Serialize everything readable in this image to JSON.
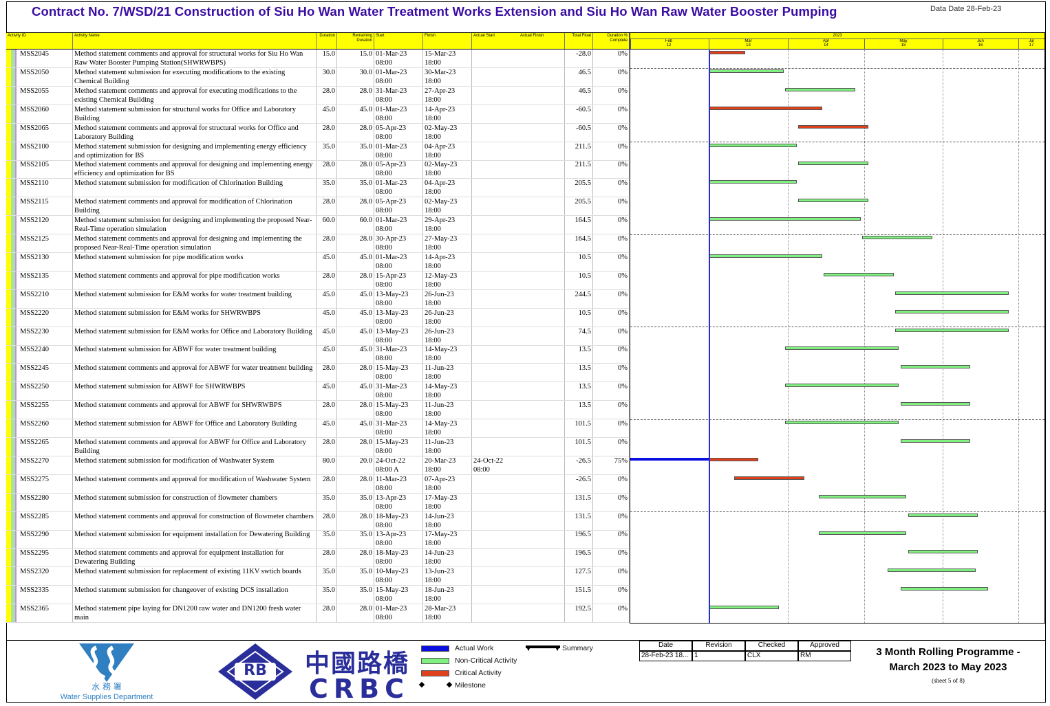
{
  "header": {
    "title": "Contract No. 7/WSD/21 Construction of Siu Ho Wan Water Treatment Works Extension and Siu Ho Wan Raw Water Booster Pumping",
    "data_date": "Data Date 28-Feb-23"
  },
  "columns": {
    "activity_id": "Activity ID",
    "activity_name": "Activity Name",
    "duration": "Duration",
    "remaining_duration": "Remaining Duration",
    "start": "Start",
    "finish": "Finish",
    "actual_start": "Actual Start",
    "actual_finish": "Actual Finish",
    "total_float": "Total Float",
    "duration_pct": "Duration % Complete"
  },
  "timescale": {
    "year": "2023",
    "months": [
      "Feb",
      "Mar",
      "Apr",
      "May",
      "Jun",
      "Jul"
    ],
    "month_codes": [
      "12",
      "13",
      "14",
      "15",
      "16",
      "17"
    ]
  },
  "rows": [
    {
      "id": "MSS2045",
      "name": "Method statement comments and approval for structural works for Siu Ho Wan Raw Water Booster Pumping Station(SHWRWBPS)",
      "dur": "15.0",
      "rem": "15.0",
      "start": "01-Mar-23",
      "start_t": "08:00",
      "finish": "15-Mar-23",
      "finish_t": "18:00",
      "astart": "",
      "astart_t": "",
      "tf": "-28.0",
      "pct": "0%",
      "type": "cr",
      "s": "2023-03-01",
      "f": "2023-03-15"
    },
    {
      "id": "MSS2050",
      "name": "Method statement submission for executing modifications to the existing Chemical Building",
      "dur": "30.0",
      "rem": "30.0",
      "start": "01-Mar-23",
      "start_t": "08:00",
      "finish": "30-Mar-23",
      "finish_t": "18:00",
      "astart": "",
      "astart_t": "",
      "tf": "46.5",
      "pct": "0%",
      "type": "nc",
      "s": "2023-03-01",
      "f": "2023-03-30"
    },
    {
      "id": "MSS2055",
      "name": "Method statement comments and approval for executing modifications to the existing Chemical Building",
      "dur": "28.0",
      "rem": "28.0",
      "start": "31-Mar-23",
      "start_t": "08:00",
      "finish": "27-Apr-23",
      "finish_t": "18:00",
      "astart": "",
      "astart_t": "",
      "tf": "46.5",
      "pct": "0%",
      "type": "nc",
      "s": "2023-03-31",
      "f": "2023-04-27"
    },
    {
      "id": "MSS2060",
      "name": "Method statement submission for structural works for Office and Laboratory Building",
      "dur": "45.0",
      "rem": "45.0",
      "start": "01-Mar-23",
      "start_t": "08:00",
      "finish": "14-Apr-23",
      "finish_t": "18:00",
      "astart": "",
      "astart_t": "",
      "tf": "-60.5",
      "pct": "0%",
      "type": "cr",
      "s": "2023-03-01",
      "f": "2023-04-14"
    },
    {
      "id": "MSS2065",
      "name": "Method statement comments and approval for structural works for Office and Laboratory Building",
      "dur": "28.0",
      "rem": "28.0",
      "start": "05-Apr-23",
      "start_t": "08:00",
      "finish": "02-May-23",
      "finish_t": "18:00",
      "astart": "",
      "astart_t": "",
      "tf": "-60.5",
      "pct": "0%",
      "type": "cr",
      "s": "2023-04-05",
      "f": "2023-05-02"
    },
    {
      "id": "MSS2100",
      "name": "Method statement submission for designing and implementing energy efficiency and optimization for BS",
      "dur": "35.0",
      "rem": "35.0",
      "start": "01-Mar-23",
      "start_t": "08:00",
      "finish": "04-Apr-23",
      "finish_t": "18:00",
      "astart": "",
      "astart_t": "",
      "tf": "211.5",
      "pct": "0%",
      "type": "nc",
      "s": "2023-03-01",
      "f": "2023-04-04"
    },
    {
      "id": "MSS2105",
      "name": "Method statement comments and approval for designing and implementing energy efficiency and optimization for BS",
      "dur": "28.0",
      "rem": "28.0",
      "start": "05-Apr-23",
      "start_t": "08:00",
      "finish": "02-May-23",
      "finish_t": "18:00",
      "astart": "",
      "astart_t": "",
      "tf": "211.5",
      "pct": "0%",
      "type": "nc",
      "s": "2023-04-05",
      "f": "2023-05-02"
    },
    {
      "id": "MSS2110",
      "name": "Method statement submission for modification of Chlorination Building",
      "dur": "35.0",
      "rem": "35.0",
      "start": "01-Mar-23",
      "start_t": "08:00",
      "finish": "04-Apr-23",
      "finish_t": "18:00",
      "astart": "",
      "astart_t": "",
      "tf": "205.5",
      "pct": "0%",
      "type": "nc",
      "s": "2023-03-01",
      "f": "2023-04-04"
    },
    {
      "id": "MSS2115",
      "name": "Method statement  comments and approval for modification of Chlorination Building",
      "dur": "28.0",
      "rem": "28.0",
      "start": "05-Apr-23",
      "start_t": "08:00",
      "finish": "02-May-23",
      "finish_t": "18:00",
      "astart": "",
      "astart_t": "",
      "tf": "205.5",
      "pct": "0%",
      "type": "nc",
      "s": "2023-04-05",
      "f": "2023-05-02"
    },
    {
      "id": "MSS2120",
      "name": "Method statement submission for designing and implementing the proposed Near-Real-Time operation simulation",
      "dur": "60.0",
      "rem": "60.0",
      "start": "01-Mar-23",
      "start_t": "08:00",
      "finish": "29-Apr-23",
      "finish_t": "18:00",
      "astart": "",
      "astart_t": "",
      "tf": "164.5",
      "pct": "0%",
      "type": "nc",
      "s": "2023-03-01",
      "f": "2023-04-29"
    },
    {
      "id": "MSS2125",
      "name": "Method statement comments and approval for designing and implementing the proposed Near-Real-Time operation simulation",
      "dur": "28.0",
      "rem": "28.0",
      "start": "30-Apr-23",
      "start_t": "08:00",
      "finish": "27-May-23",
      "finish_t": "18:00",
      "astart": "",
      "astart_t": "",
      "tf": "164.5",
      "pct": "0%",
      "type": "nc",
      "s": "2023-04-30",
      "f": "2023-05-27"
    },
    {
      "id": "MSS2130",
      "name": "Method statement submission for pipe modification works",
      "dur": "45.0",
      "rem": "45.0",
      "start": "01-Mar-23",
      "start_t": "08:00",
      "finish": "14-Apr-23",
      "finish_t": "18:00",
      "astart": "",
      "astart_t": "",
      "tf": "10.5",
      "pct": "0%",
      "type": "nc",
      "s": "2023-03-01",
      "f": "2023-04-14"
    },
    {
      "id": "MSS2135",
      "name": "Method statement comments and approval for pipe modification works",
      "dur": "28.0",
      "rem": "28.0",
      "start": "15-Apr-23",
      "start_t": "08:00",
      "finish": "12-May-23",
      "finish_t": "18:00",
      "astart": "",
      "astart_t": "",
      "tf": "10.5",
      "pct": "0%",
      "type": "nc",
      "s": "2023-04-15",
      "f": "2023-05-12"
    },
    {
      "id": "MSS2210",
      "name": "Method statement submission for E&M works for water treatment building",
      "dur": "45.0",
      "rem": "45.0",
      "start": "13-May-23",
      "start_t": "08:00",
      "finish": "26-Jun-23",
      "finish_t": "18:00",
      "astart": "",
      "astart_t": "",
      "tf": "244.5",
      "pct": "0%",
      "type": "nc",
      "s": "2023-05-13",
      "f": "2023-06-26"
    },
    {
      "id": "MSS2220",
      "name": "Method statement submission for E&M works for SHWRWBPS",
      "dur": "45.0",
      "rem": "45.0",
      "start": "13-May-23",
      "start_t": "08:00",
      "finish": "26-Jun-23",
      "finish_t": "18:00",
      "astart": "",
      "astart_t": "",
      "tf": "10.5",
      "pct": "0%",
      "type": "nc",
      "s": "2023-05-13",
      "f": "2023-06-26"
    },
    {
      "id": "MSS2230",
      "name": "Method statement submission for E&M works for Office and Laboratory Building",
      "dur": "45.0",
      "rem": "45.0",
      "start": "13-May-23",
      "start_t": "08:00",
      "finish": "26-Jun-23",
      "finish_t": "18:00",
      "astart": "",
      "astart_t": "",
      "tf": "74.5",
      "pct": "0%",
      "type": "nc",
      "s": "2023-05-13",
      "f": "2023-06-26"
    },
    {
      "id": "MSS2240",
      "name": "Method statement submission for ABWF for water treatment building",
      "dur": "45.0",
      "rem": "45.0",
      "start": "31-Mar-23",
      "start_t": "08:00",
      "finish": "14-May-23",
      "finish_t": "18:00",
      "astart": "",
      "astart_t": "",
      "tf": "13.5",
      "pct": "0%",
      "type": "nc",
      "s": "2023-03-31",
      "f": "2023-05-14"
    },
    {
      "id": "MSS2245",
      "name": "Method statement comments and approval for ABWF for water treatment building",
      "dur": "28.0",
      "rem": "28.0",
      "start": "15-May-23",
      "start_t": "08:00",
      "finish": "11-Jun-23",
      "finish_t": "18:00",
      "astart": "",
      "astart_t": "",
      "tf": "13.5",
      "pct": "0%",
      "type": "nc",
      "s": "2023-05-15",
      "f": "2023-06-11"
    },
    {
      "id": "MSS2250",
      "name": "Method statement submission for ABWF for SHWRWBPS",
      "dur": "45.0",
      "rem": "45.0",
      "start": "31-Mar-23",
      "start_t": "08:00",
      "finish": "14-May-23",
      "finish_t": "18:00",
      "astart": "",
      "astart_t": "",
      "tf": "13.5",
      "pct": "0%",
      "type": "nc",
      "s": "2023-03-31",
      "f": "2023-05-14"
    },
    {
      "id": "MSS2255",
      "name": "Method statement comments and approval for ABWF for SHWRWBPS",
      "dur": "28.0",
      "rem": "28.0",
      "start": "15-May-23",
      "start_t": "08:00",
      "finish": "11-Jun-23",
      "finish_t": "18:00",
      "astart": "",
      "astart_t": "",
      "tf": "13.5",
      "pct": "0%",
      "type": "nc",
      "s": "2023-05-15",
      "f": "2023-06-11"
    },
    {
      "id": "MSS2260",
      "name": "Method statement submission for ABWF for Office and Laboratory Building",
      "dur": "45.0",
      "rem": "45.0",
      "start": "31-Mar-23",
      "start_t": "08:00",
      "finish": "14-May-23",
      "finish_t": "18:00",
      "astart": "",
      "astart_t": "",
      "tf": "101.5",
      "pct": "0%",
      "type": "nc",
      "s": "2023-03-31",
      "f": "2023-05-14"
    },
    {
      "id": "MSS2265",
      "name": "Method statement comments and approval for ABWF for Office and Laboratory Building",
      "dur": "28.0",
      "rem": "28.0",
      "start": "15-May-23",
      "start_t": "08:00",
      "finish": "11-Jun-23",
      "finish_t": "18:00",
      "astart": "",
      "astart_t": "",
      "tf": "101.5",
      "pct": "0%",
      "type": "nc",
      "s": "2023-05-15",
      "f": "2023-06-11"
    },
    {
      "id": "MSS2270",
      "name": "Method statement submission for modification of Washwater System",
      "dur": "80.0",
      "rem": "20.0",
      "start": "24-Oct-22",
      "start_t": "08:00 A",
      "finish": "20-Mar-23",
      "finish_t": "18:00",
      "astart": "24-Oct-22",
      "astart_t": "08:00",
      "tf": "-26.5",
      "pct": "75%",
      "type": "cr",
      "s": "2023-03-01",
      "f": "2023-03-20",
      "actual": true
    },
    {
      "id": "MSS2275",
      "name": "Method statement comments and approval for modification of Washwater System",
      "dur": "28.0",
      "rem": "28.0",
      "start": "11-Mar-23",
      "start_t": "08:00",
      "finish": "07-Apr-23",
      "finish_t": "18:00",
      "astart": "",
      "astart_t": "",
      "tf": "-26.5",
      "pct": "0%",
      "type": "cr",
      "s": "2023-03-11",
      "f": "2023-04-07"
    },
    {
      "id": "MSS2280",
      "name": "Method statement submission for construction of flowmeter chambers",
      "dur": "35.0",
      "rem": "35.0",
      "start": "13-Apr-23",
      "start_t": "08:00",
      "finish": "17-May-23",
      "finish_t": "18:00",
      "astart": "",
      "astart_t": "",
      "tf": "131.5",
      "pct": "0%",
      "type": "nc",
      "s": "2023-04-13",
      "f": "2023-05-17"
    },
    {
      "id": "MSS2285",
      "name": "Method statement comments and approval for construction of flowmeter chambers",
      "dur": "28.0",
      "rem": "28.0",
      "start": "18-May-23",
      "start_t": "08:00",
      "finish": "14-Jun-23",
      "finish_t": "18:00",
      "astart": "",
      "astart_t": "",
      "tf": "131.5",
      "pct": "0%",
      "type": "nc",
      "s": "2023-05-18",
      "f": "2023-06-14"
    },
    {
      "id": "MSS2290",
      "name": "Method statement submission for equipment installation for Dewatering Building",
      "dur": "35.0",
      "rem": "35.0",
      "start": "13-Apr-23",
      "start_t": "08:00",
      "finish": "17-May-23",
      "finish_t": "18:00",
      "astart": "",
      "astart_t": "",
      "tf": "196.5",
      "pct": "0%",
      "type": "nc",
      "s": "2023-04-13",
      "f": "2023-05-17"
    },
    {
      "id": "MSS2295",
      "name": "Method statement comments and approval for equipment installation for Dewatering Building",
      "dur": "28.0",
      "rem": "28.0",
      "start": "18-May-23",
      "start_t": "08:00",
      "finish": "14-Jun-23",
      "finish_t": "18:00",
      "astart": "",
      "astart_t": "",
      "tf": "196.5",
      "pct": "0%",
      "type": "nc",
      "s": "2023-05-18",
      "f": "2023-06-14"
    },
    {
      "id": "MSS2320",
      "name": "Method statement submission for replacement of existing 11KV swtich boards",
      "dur": "35.0",
      "rem": "35.0",
      "start": "10-May-23",
      "start_t": "08:00",
      "finish": "13-Jun-23",
      "finish_t": "18:00",
      "astart": "",
      "astart_t": "",
      "tf": "127.5",
      "pct": "0%",
      "type": "nc",
      "s": "2023-05-10",
      "f": "2023-06-13"
    },
    {
      "id": "MSS2335",
      "name": "Method statement submission for changeover of existing DCS installation",
      "dur": "35.0",
      "rem": "35.0",
      "start": "15-May-23",
      "start_t": "08:00",
      "finish": "18-Jun-23",
      "finish_t": "18:00",
      "astart": "",
      "astart_t": "",
      "tf": "151.5",
      "pct": "0%",
      "type": "nc",
      "s": "2023-05-15",
      "f": "2023-06-18"
    },
    {
      "id": "MSS2365",
      "name": "Method statement pipe laying for DN1200 raw water and DN1200 fresh water main",
      "dur": "28.0",
      "rem": "28.0",
      "start": "01-Mar-23",
      "start_t": "08:00",
      "finish": "28-Mar-23",
      "finish_t": "18:00",
      "astart": "",
      "astart_t": "",
      "tf": "192.5",
      "pct": "0%",
      "type": "nc",
      "s": "2023-03-01",
      "f": "2023-03-28"
    }
  ],
  "colors": {
    "critical": "#e0401c",
    "non_critical": "#80f080",
    "actual": "#0b10e0",
    "header_bg": "#ffff00",
    "title": "#3a0ca3"
  },
  "footer": {
    "wsd_cn": "水 務 署",
    "wsd_en": "Water Supplies Department",
    "rb_logo": "RB",
    "crbc_cn": "中國路橋",
    "crbc_en": "CRBC",
    "legend": {
      "actual_work": "Actual Work",
      "non_critical": "Non-Critical Activity",
      "critical": "Critical Activity",
      "milestone": "Milestone",
      "summary": "Summary"
    },
    "signoff": {
      "headers": [
        "Date",
        "Revision",
        "Checked",
        "Approved"
      ],
      "values": [
        "28-Feb-23 18...",
        "1",
        "CLX",
        "RM"
      ]
    },
    "programme_title_1": "3 Month Rolling Programme -",
    "programme_title_2": "March 2023 to May 2023",
    "sheet": "(sheet 5 of 8)"
  },
  "data_date_iso": "2023-02-28"
}
